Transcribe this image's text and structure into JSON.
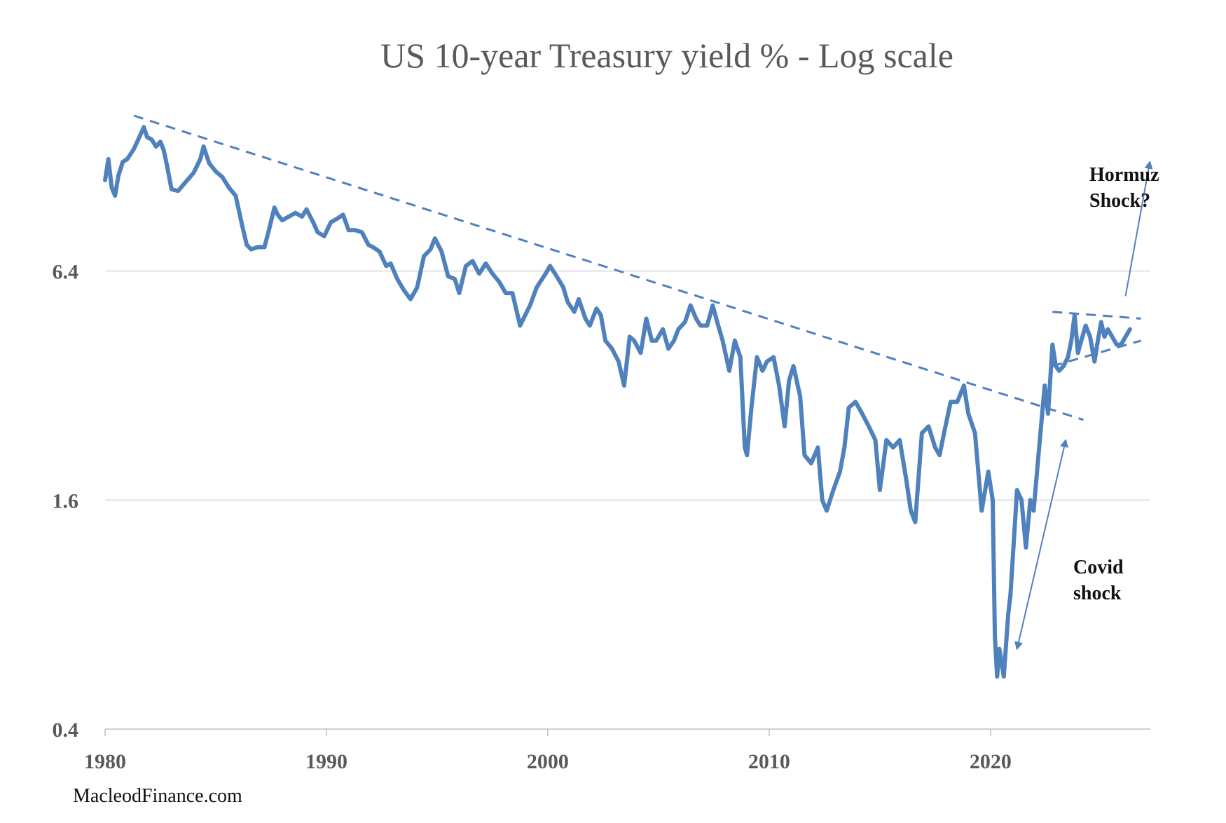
{
  "chart_data": {
    "type": "line",
    "title": "US 10-year Treasury yield % - Log scale",
    "xlabel": "",
    "ylabel": "",
    "y_scale": "log",
    "ylim": [
      0.4,
      25.6
    ],
    "xlim": [
      1980,
      2027
    ],
    "y_ticks": [
      {
        "value": 0.4,
        "label": "0.4"
      },
      {
        "value": 1.6,
        "label": "1.6"
      },
      {
        "value": 6.4,
        "label": "6.4"
      }
    ],
    "x_ticks": [
      {
        "value": 1980,
        "label": "1980"
      },
      {
        "value": 1990,
        "label": "1990"
      },
      {
        "value": 2000,
        "label": "2000"
      },
      {
        "value": 2010,
        "label": "2010"
      },
      {
        "value": 2020,
        "label": "2020"
      }
    ],
    "grid": "horizontal",
    "legend": "none",
    "series": [
      {
        "color": "#4f81bd",
        "points": [
          [
            1980.0,
            11.1
          ],
          [
            1980.15,
            12.6
          ],
          [
            1980.3,
            10.6
          ],
          [
            1980.45,
            10.1
          ],
          [
            1980.6,
            11.4
          ],
          [
            1980.8,
            12.4
          ],
          [
            1981.0,
            12.6
          ],
          [
            1981.3,
            13.4
          ],
          [
            1981.5,
            14.2
          ],
          [
            1981.75,
            15.3
          ],
          [
            1981.9,
            14.4
          ],
          [
            1982.1,
            14.2
          ],
          [
            1982.3,
            13.6
          ],
          [
            1982.5,
            14.0
          ],
          [
            1982.65,
            13.3
          ],
          [
            1982.8,
            12.1
          ],
          [
            1983.0,
            10.5
          ],
          [
            1983.3,
            10.4
          ],
          [
            1983.6,
            10.9
          ],
          [
            1984.0,
            11.6
          ],
          [
            1984.3,
            12.6
          ],
          [
            1984.45,
            13.6
          ],
          [
            1984.7,
            12.3
          ],
          [
            1985.0,
            11.7
          ],
          [
            1985.3,
            11.3
          ],
          [
            1985.6,
            10.6
          ],
          [
            1985.9,
            10.1
          ],
          [
            1986.2,
            8.4
          ],
          [
            1986.4,
            7.5
          ],
          [
            1986.6,
            7.3
          ],
          [
            1986.9,
            7.4
          ],
          [
            1987.2,
            7.4
          ],
          [
            1987.4,
            8.2
          ],
          [
            1987.65,
            9.4
          ],
          [
            1987.8,
            9.0
          ],
          [
            1988.0,
            8.7
          ],
          [
            1988.3,
            8.9
          ],
          [
            1988.6,
            9.1
          ],
          [
            1988.9,
            8.9
          ],
          [
            1989.1,
            9.3
          ],
          [
            1989.4,
            8.6
          ],
          [
            1989.6,
            8.1
          ],
          [
            1989.9,
            7.9
          ],
          [
            1990.2,
            8.6
          ],
          [
            1990.5,
            8.8
          ],
          [
            1990.75,
            9.0
          ],
          [
            1991.0,
            8.2
          ],
          [
            1991.3,
            8.2
          ],
          [
            1991.6,
            8.1
          ],
          [
            1991.9,
            7.5
          ],
          [
            1992.1,
            7.4
          ],
          [
            1992.4,
            7.2
          ],
          [
            1992.7,
            6.6
          ],
          [
            1992.9,
            6.7
          ],
          [
            1993.2,
            6.1
          ],
          [
            1993.5,
            5.7
          ],
          [
            1993.8,
            5.4
          ],
          [
            1994.1,
            5.8
          ],
          [
            1994.4,
            7.0
          ],
          [
            1994.7,
            7.3
          ],
          [
            1994.9,
            7.8
          ],
          [
            1995.2,
            7.2
          ],
          [
            1995.5,
            6.2
          ],
          [
            1995.8,
            6.1
          ],
          [
            1996.0,
            5.6
          ],
          [
            1996.3,
            6.6
          ],
          [
            1996.6,
            6.8
          ],
          [
            1996.9,
            6.3
          ],
          [
            1997.2,
            6.7
          ],
          [
            1997.5,
            6.3
          ],
          [
            1997.8,
            6.0
          ],
          [
            1998.1,
            5.6
          ],
          [
            1998.4,
            5.6
          ],
          [
            1998.75,
            4.6
          ],
          [
            1998.9,
            4.8
          ],
          [
            1999.2,
            5.2
          ],
          [
            1999.5,
            5.8
          ],
          [
            1999.9,
            6.3
          ],
          [
            2000.1,
            6.6
          ],
          [
            2000.4,
            6.2
          ],
          [
            2000.7,
            5.8
          ],
          [
            2000.9,
            5.3
          ],
          [
            2001.2,
            5.0
          ],
          [
            2001.4,
            5.4
          ],
          [
            2001.7,
            4.8
          ],
          [
            2001.9,
            4.6
          ],
          [
            2002.2,
            5.1
          ],
          [
            2002.4,
            4.9
          ],
          [
            2002.6,
            4.2
          ],
          [
            2002.9,
            4.0
          ],
          [
            2003.2,
            3.7
          ],
          [
            2003.45,
            3.2
          ],
          [
            2003.7,
            4.3
          ],
          [
            2003.9,
            4.2
          ],
          [
            2004.2,
            3.9
          ],
          [
            2004.45,
            4.8
          ],
          [
            2004.7,
            4.2
          ],
          [
            2004.9,
            4.2
          ],
          [
            2005.2,
            4.5
          ],
          [
            2005.45,
            4.0
          ],
          [
            2005.7,
            4.2
          ],
          [
            2005.9,
            4.5
          ],
          [
            2006.2,
            4.7
          ],
          [
            2006.45,
            5.2
          ],
          [
            2006.7,
            4.8
          ],
          [
            2006.9,
            4.6
          ],
          [
            2007.2,
            4.6
          ],
          [
            2007.45,
            5.2
          ],
          [
            2007.7,
            4.6
          ],
          [
            2007.9,
            4.2
          ],
          [
            2008.2,
            3.5
          ],
          [
            2008.45,
            4.2
          ],
          [
            2008.7,
            3.8
          ],
          [
            2008.9,
            2.2
          ],
          [
            2009.0,
            2.1
          ],
          [
            2009.2,
            2.8
          ],
          [
            2009.45,
            3.8
          ],
          [
            2009.7,
            3.5
          ],
          [
            2009.9,
            3.7
          ],
          [
            2010.2,
            3.8
          ],
          [
            2010.45,
            3.2
          ],
          [
            2010.7,
            2.5
          ],
          [
            2010.9,
            3.3
          ],
          [
            2011.1,
            3.6
          ],
          [
            2011.4,
            3.0
          ],
          [
            2011.6,
            2.1
          ],
          [
            2011.9,
            2.0
          ],
          [
            2012.2,
            2.2
          ],
          [
            2012.4,
            1.6
          ],
          [
            2012.6,
            1.5
          ],
          [
            2012.9,
            1.7
          ],
          [
            2013.2,
            1.9
          ],
          [
            2013.4,
            2.2
          ],
          [
            2013.6,
            2.8
          ],
          [
            2013.9,
            2.9
          ],
          [
            2014.2,
            2.7
          ],
          [
            2014.5,
            2.5
          ],
          [
            2014.8,
            2.3
          ],
          [
            2015.0,
            1.7
          ],
          [
            2015.3,
            2.3
          ],
          [
            2015.6,
            2.2
          ],
          [
            2015.9,
            2.3
          ],
          [
            2016.2,
            1.8
          ],
          [
            2016.4,
            1.5
          ],
          [
            2016.6,
            1.4
          ],
          [
            2016.9,
            2.4
          ],
          [
            2017.2,
            2.5
          ],
          [
            2017.5,
            2.2
          ],
          [
            2017.7,
            2.1
          ],
          [
            2017.9,
            2.4
          ],
          [
            2018.2,
            2.9
          ],
          [
            2018.5,
            2.9
          ],
          [
            2018.8,
            3.2
          ],
          [
            2019.0,
            2.7
          ],
          [
            2019.3,
            2.4
          ],
          [
            2019.6,
            1.5
          ],
          [
            2019.9,
            1.9
          ],
          [
            2020.1,
            1.6
          ],
          [
            2020.2,
            0.7
          ],
          [
            2020.3,
            0.55
          ],
          [
            2020.4,
            0.65
          ],
          [
            2020.6,
            0.55
          ],
          [
            2020.8,
            0.8
          ],
          [
            2020.9,
            0.9
          ],
          [
            2021.2,
            1.7
          ],
          [
            2021.4,
            1.6
          ],
          [
            2021.6,
            1.2
          ],
          [
            2021.8,
            1.6
          ],
          [
            2021.95,
            1.5
          ],
          [
            2022.2,
            2.2
          ],
          [
            2022.45,
            3.2
          ],
          [
            2022.6,
            2.7
          ],
          [
            2022.8,
            4.1
          ],
          [
            2022.95,
            3.6
          ],
          [
            2023.1,
            3.5
          ],
          [
            2023.3,
            3.6
          ],
          [
            2023.5,
            3.8
          ],
          [
            2023.65,
            4.2
          ],
          [
            2023.8,
            4.9
          ],
          [
            2023.95,
            3.9
          ],
          [
            2024.1,
            4.2
          ],
          [
            2024.3,
            4.6
          ],
          [
            2024.5,
            4.3
          ],
          [
            2024.7,
            3.7
          ],
          [
            2024.85,
            4.2
          ],
          [
            2025.0,
            4.7
          ],
          [
            2025.15,
            4.3
          ],
          [
            2025.3,
            4.5
          ],
          [
            2025.5,
            4.3
          ],
          [
            2025.7,
            4.1
          ],
          [
            2025.9,
            4.1
          ],
          [
            2026.1,
            4.3
          ],
          [
            2026.3,
            4.5
          ]
        ]
      }
    ],
    "trendlines": [
      {
        "from": [
          1981.3,
          16.4
        ],
        "to": [
          2024.2,
          2.6
        ]
      },
      {
        "from": [
          2022.8,
          5.0
        ],
        "to": [
          2026.8,
          4.8
        ]
      },
      {
        "from": [
          2022.8,
          3.6
        ],
        "to": [
          2026.8,
          4.2
        ]
      }
    ],
    "arrows": [
      {
        "name": "covid-arrow",
        "from": [
          2023.4,
          2.3
        ],
        "to": [
          2021.2,
          0.65
        ]
      },
      {
        "name": "hormuz-arrow",
        "from": [
          2026.1,
          5.5
        ],
        "to": [
          2027.2,
          12.4
        ]
      }
    ],
    "annotations": [
      {
        "name": "hormuz",
        "lines": [
          "Hormuz",
          "Shock?"
        ]
      },
      {
        "name": "covid",
        "lines": [
          "Covid",
          "shock"
        ]
      }
    ]
  },
  "colors": {
    "line": "#4f81bd",
    "grid": "#d9d9d9",
    "axis": "#bfbfbf",
    "text": "#595959"
  },
  "footer": {
    "credit": "MacleodFinance.com"
  }
}
